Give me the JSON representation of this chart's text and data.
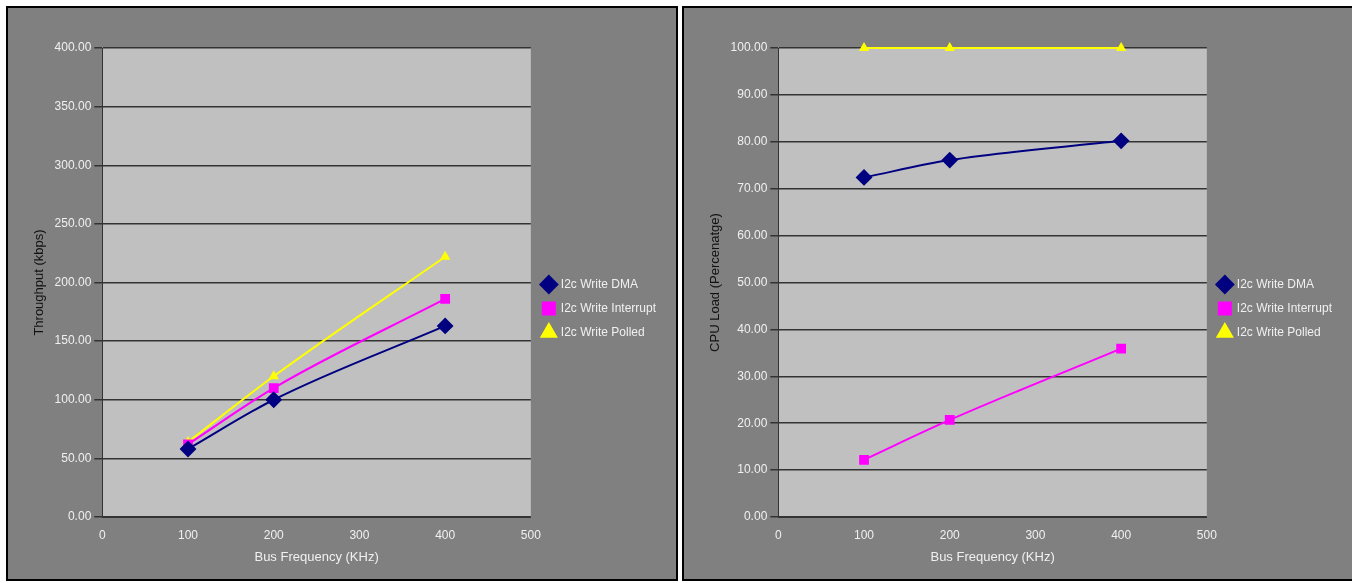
{
  "chart_data": [
    {
      "type": "line",
      "xlabel": "Bus Frequency (KHz)",
      "ylabel": "Throughput (kbps)",
      "xlim": [
        0,
        500
      ],
      "xticks": [
        0,
        100,
        200,
        300,
        400,
        500
      ],
      "ylim": [
        0,
        400
      ],
      "yticks": [
        {
          "value": 0,
          "label": "0.00"
        },
        {
          "value": 50,
          "label": "50.00"
        },
        {
          "value": 100,
          "label": "100.00"
        },
        {
          "value": 150,
          "label": "150.00"
        },
        {
          "value": 200,
          "label": "200.00"
        },
        {
          "value": 250,
          "label": "250.00"
        },
        {
          "value": 300,
          "label": "300.00"
        },
        {
          "value": 350,
          "label": "350.00"
        },
        {
          "value": 400,
          "label": "400.00"
        }
      ],
      "grid": "y",
      "legend": "right",
      "x": [
        100,
        200,
        400
      ],
      "series": [
        {
          "name": "I2c Write DMA",
          "color": "#000080",
          "marker": "diamond",
          "values": [
            58,
            100,
            163
          ]
        },
        {
          "name": "I2c Write Interrupt",
          "color": "#ff00ff",
          "marker": "square",
          "values": [
            62,
            110,
            186
          ]
        },
        {
          "name": "I2c Write Polled",
          "color": "#ffff00",
          "marker": "triangle",
          "values": [
            64,
            120,
            222
          ]
        }
      ]
    },
    {
      "type": "line",
      "xlabel": "Bus Frequency (KHz)",
      "ylabel": "CPU Load (Percenatge)",
      "xlim": [
        0,
        500
      ],
      "xticks": [
        0,
        100,
        200,
        300,
        400,
        500
      ],
      "ylim": [
        0,
        100
      ],
      "yticks": [
        {
          "value": 0,
          "label": "0.00"
        },
        {
          "value": 10,
          "label": "10.00"
        },
        {
          "value": 20,
          "label": "20.00"
        },
        {
          "value": 30,
          "label": "30.00"
        },
        {
          "value": 40,
          "label": "40.00"
        },
        {
          "value": 50,
          "label": "50.00"
        },
        {
          "value": 60,
          "label": "60.00"
        },
        {
          "value": 70,
          "label": "70.00"
        },
        {
          "value": 80,
          "label": "80.00"
        },
        {
          "value": 90,
          "label": "90.00"
        },
        {
          "value": 100,
          "label": "100.00"
        }
      ],
      "grid": "y",
      "legend": "right",
      "x": [
        100,
        200,
        400
      ],
      "series": [
        {
          "name": "I2c Write DMA",
          "color": "#000080",
          "marker": "diamond",
          "values": [
            72.4,
            76.1,
            80.2
          ]
        },
        {
          "name": "I2c Write Interrupt",
          "color": "#ff00ff",
          "marker": "square",
          "values": [
            12.2,
            20.7,
            35.9
          ]
        },
        {
          "name": "I2c Write Polled",
          "color": "#ffff00",
          "marker": "triangle",
          "values": [
            100,
            100,
            100
          ]
        }
      ]
    }
  ]
}
